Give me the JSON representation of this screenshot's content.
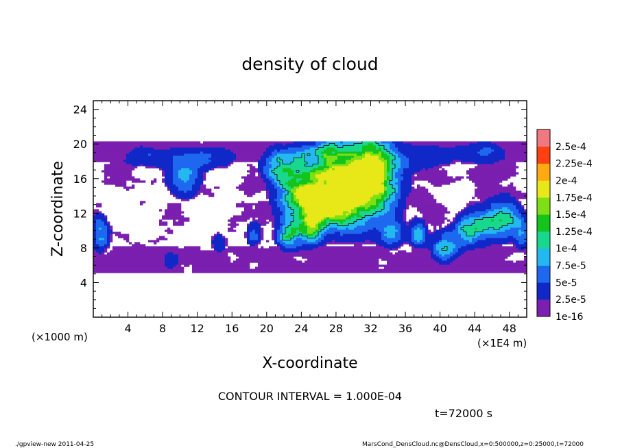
{
  "chart_data": {
    "type": "heatmap",
    "title": "density of cloud",
    "xlabel": "X-coordinate",
    "ylabel": "Z-coordinate",
    "xunit": "(×1E4 m)",
    "yunit": "(×1000 m)",
    "xlim": [
      0,
      50
    ],
    "ylim": [
      0,
      25
    ],
    "xticks": [
      4,
      8,
      12,
      16,
      20,
      24,
      28,
      32,
      36,
      40,
      44,
      48
    ],
    "yticks": [
      4,
      8,
      12,
      16,
      20,
      24
    ],
    "colorbar": {
      "labels": [
        "1e-16",
        "2.5e-5",
        "5e-5",
        "7.5e-5",
        "1e-4",
        "1.25e-4",
        "1.5e-4",
        "1.75e-4",
        "2e-4",
        "2.25e-4",
        "2.5e-4"
      ],
      "colors": [
        "#7a1fb0",
        "#1028c8",
        "#1e68f0",
        "#24b8f0",
        "#18d890",
        "#14c41c",
        "#7ee014",
        "#e8e818",
        "#ffaa10",
        "#ff4010",
        "#f07880"
      ]
    },
    "field_extent": {
      "x": [
        0,
        50
      ],
      "z": [
        5,
        20.3
      ]
    },
    "blobs": [
      {
        "x": 30.0,
        "z": 15.2,
        "sx": 3.2,
        "sz": 3.2,
        "amp": 1.65
      },
      {
        "x": 27.0,
        "z": 13.5,
        "sx": 2.2,
        "sz": 2.0,
        "amp": 1.2
      },
      {
        "x": 24.0,
        "z": 14.0,
        "sx": 2.0,
        "sz": 2.5,
        "amp": 0.95
      },
      {
        "x": 32.5,
        "z": 17.5,
        "sx": 1.6,
        "sz": 2.0,
        "amp": 1.15
      },
      {
        "x": 22.5,
        "z": 9.5,
        "sx": 0.9,
        "sz": 1.2,
        "amp": 0.95
      },
      {
        "x": 25.0,
        "z": 10.0,
        "sx": 1.0,
        "sz": 1.3,
        "amp": 0.75
      },
      {
        "x": 21.5,
        "z": 17.5,
        "sx": 1.4,
        "sz": 1.5,
        "amp": 0.8
      },
      {
        "x": 10.5,
        "z": 16.5,
        "sx": 1.4,
        "sz": 1.8,
        "amp": 0.7
      },
      {
        "x": 6.0,
        "z": 18.5,
        "sx": 2.0,
        "sz": 1.0,
        "amp": 0.45
      },
      {
        "x": 14.0,
        "z": 18.5,
        "sx": 2.0,
        "sz": 1.1,
        "amp": 0.4
      },
      {
        "x": 47.5,
        "z": 11.5,
        "sx": 1.3,
        "sz": 1.6,
        "amp": 0.95
      },
      {
        "x": 44.5,
        "z": 10.5,
        "sx": 1.5,
        "sz": 1.5,
        "amp": 0.75
      },
      {
        "x": 40.5,
        "z": 8.0,
        "sx": 1.0,
        "sz": 1.2,
        "amp": 0.85
      },
      {
        "x": 37.5,
        "z": 9.5,
        "sx": 0.7,
        "sz": 1.0,
        "amp": 0.85
      },
      {
        "x": 34.5,
        "z": 9.5,
        "sx": 0.9,
        "sz": 1.2,
        "amp": 0.65
      },
      {
        "x": 43.0,
        "z": 9.5,
        "sx": 1.0,
        "sz": 1.2,
        "amp": 0.6
      },
      {
        "x": 0.8,
        "z": 9.5,
        "sx": 0.8,
        "sz": 1.6,
        "amp": 0.75
      },
      {
        "x": 49.5,
        "z": 9.5,
        "sx": 0.6,
        "sz": 1.2,
        "amp": 0.6
      },
      {
        "x": 18.5,
        "z": 9.5,
        "sx": 0.7,
        "sz": 1.2,
        "amp": 0.45
      },
      {
        "x": 14.5,
        "z": 8.5,
        "sx": 0.8,
        "sz": 1.0,
        "amp": 0.35
      },
      {
        "x": 9.0,
        "z": 6.5,
        "sx": 0.8,
        "sz": 0.9,
        "amp": 0.4
      },
      {
        "x": 45.0,
        "z": 19.0,
        "sx": 2.0,
        "sz": 1.0,
        "amp": 0.45
      },
      {
        "x": 39.0,
        "z": 18.5,
        "sx": 2.5,
        "sz": 1.2,
        "amp": 0.35
      },
      {
        "x": 26.5,
        "z": 19.0,
        "sx": 2.0,
        "sz": 1.0,
        "amp": 0.55
      }
    ]
  },
  "annotations": {
    "contour_interval": "CONTOUR INTERVAL = 1.000E-04",
    "time": "t=72000 s",
    "footer_left": "./gpview-new   2011-04-25",
    "footer_right": "MarsCond_DensCloud.nc@DensCloud,x=0:500000,z=0:25000,t=72000"
  }
}
